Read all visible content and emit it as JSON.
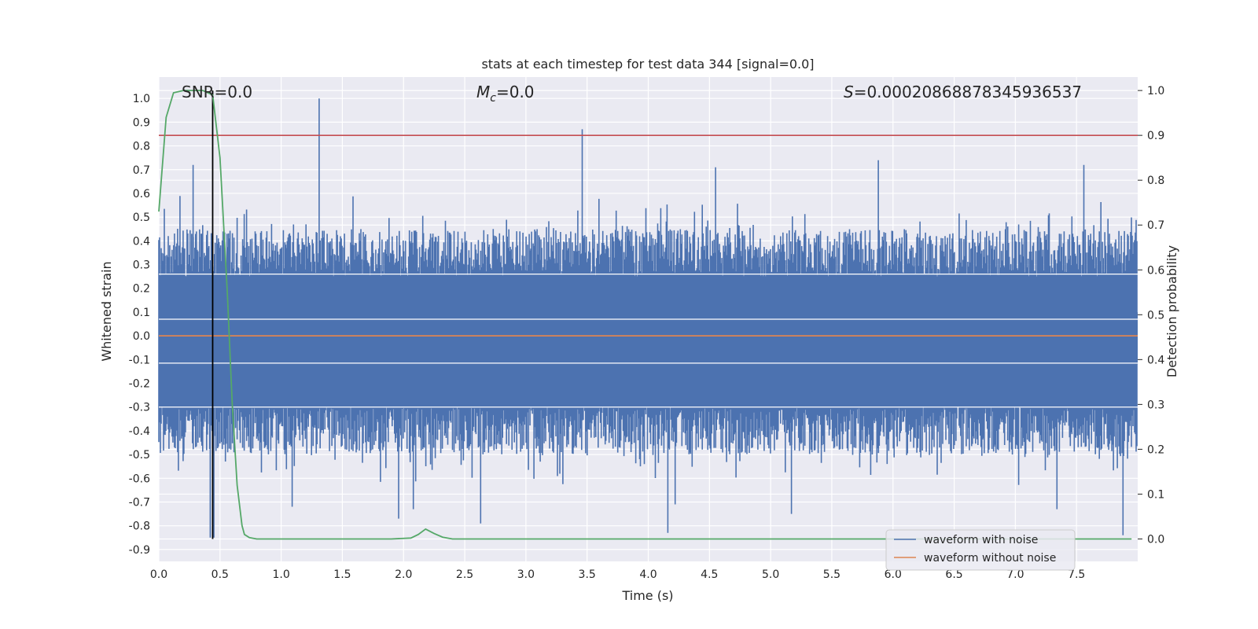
{
  "chart_data": {
    "type": "line",
    "title": "stats at each timestep for test data 344 [signal=0.0]",
    "xlabel": "Time (s)",
    "ylabel": "Whitened strain",
    "ylabel_right": "Detection probability",
    "xlim": [
      0.0,
      8.0
    ],
    "ylim": [
      -0.95,
      1.09
    ],
    "ylim_right": [
      -0.05,
      1.03
    ],
    "x_ticks": [
      "0.0",
      "0.5",
      "1.0",
      "1.5",
      "2.0",
      "2.5",
      "3.0",
      "3.5",
      "4.0",
      "4.5",
      "5.0",
      "5.5",
      "6.0",
      "6.5",
      "7.0",
      "7.5"
    ],
    "y_ticks": [
      "1.0",
      "0.9",
      "0.8",
      "0.7",
      "0.6",
      "0.5",
      "0.4",
      "0.3",
      "0.2",
      "0.1",
      "0.0",
      "-0.1",
      "-0.2",
      "-0.3",
      "-0.4",
      "-0.5",
      "-0.6",
      "-0.7",
      "-0.8",
      "-0.9"
    ],
    "y_ticks_right": [
      "1.0",
      "0.9",
      "0.8",
      "0.7",
      "0.6",
      "0.5",
      "0.4",
      "0.3",
      "0.2",
      "0.1",
      "0.0"
    ],
    "grid": true,
    "legend_position": "lower-right",
    "annotations": {
      "snr": "SNR=0.0",
      "mc": "=0.0",
      "mc_symbol": "M",
      "mc_subscript": "c",
      "s_symbol": "S",
      "s": "=0.00020868878345936537"
    },
    "series": [
      {
        "name": "waveform with noise",
        "color": "#4c72b0",
        "noise_upper_typical": [
          0.25,
          0.45
        ],
        "noise_lower_typical": [
          -0.3,
          -0.5
        ],
        "peaks": [
          {
            "x": 1.31,
            "y": 1.0
          },
          {
            "x": 3.46,
            "y": 0.87
          },
          {
            "x": 0.28,
            "y": 0.72
          },
          {
            "x": 5.88,
            "y": 0.74
          },
          {
            "x": 7.56,
            "y": 0.72
          },
          {
            "x": 4.55,
            "y": 0.71
          },
          {
            "x": 0.42,
            "y": -0.85
          },
          {
            "x": 0.45,
            "y": -0.85
          },
          {
            "x": 4.16,
            "y": -0.83
          },
          {
            "x": 7.88,
            "y": -0.84
          },
          {
            "x": 2.63,
            "y": -0.79
          },
          {
            "x": 1.96,
            "y": -0.77
          },
          {
            "x": 5.17,
            "y": -0.75
          },
          {
            "x": 7.34,
            "y": -0.73
          },
          {
            "x": 2.08,
            "y": -0.73
          },
          {
            "x": 1.09,
            "y": -0.72
          },
          {
            "x": 4.22,
            "y": -0.71
          }
        ]
      },
      {
        "name": "waveform without noise",
        "color": "#dd8452",
        "x": [
          0.0,
          8.0
        ],
        "y": [
          0.0,
          0.0
        ]
      },
      {
        "name": "",
        "color": "#55a868",
        "axis": "right",
        "x": [
          0.0,
          0.06,
          0.12,
          0.2,
          0.28,
          0.36,
          0.44,
          0.5,
          0.56,
          0.6,
          0.64,
          0.68,
          0.7,
          0.74,
          0.8,
          1.0,
          1.5,
          1.9,
          2.06,
          2.12,
          2.18,
          2.25,
          2.32,
          2.4,
          3.0,
          4.0,
          5.0,
          6.0,
          7.0,
          7.95
        ],
        "y": [
          0.73,
          0.94,
          0.995,
          1.0,
          1.0,
          1.0,
          0.99,
          0.85,
          0.55,
          0.3,
          0.12,
          0.03,
          0.01,
          0.003,
          0.0,
          0.0,
          0.0,
          0.0,
          0.002,
          0.01,
          0.022,
          0.012,
          0.004,
          0.0,
          0.0,
          0.0,
          0.0,
          0.0,
          0.0,
          0.0
        ]
      }
    ],
    "threshold_right": {
      "value": 0.9,
      "color": "#c44e52"
    },
    "marker_line": {
      "x": 0.44,
      "color": "#000000"
    }
  }
}
